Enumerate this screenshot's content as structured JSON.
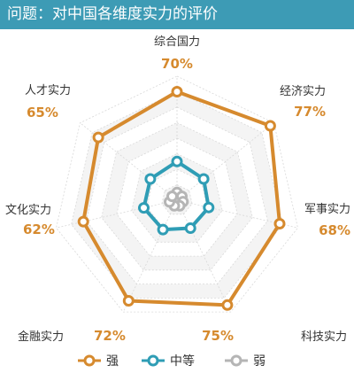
{
  "header": {
    "title": "问题：对中国各维度实力的评价"
  },
  "chart_data": {
    "type": "radar",
    "title": "问题：对中国各维度实力的评价",
    "categories": [
      "综合国力",
      "经济实力",
      "军事实力",
      "科技实力",
      "金融实力",
      "文化实力",
      "人才实力"
    ],
    "rlim": [
      0,
      80
    ],
    "grid": true,
    "legend_position": "bottom",
    "series": [
      {
        "name": "强",
        "color": "#d68a2e",
        "values": [
          70,
          77,
          68,
          75,
          72,
          62,
          65
        ]
      },
      {
        "name": "中等",
        "color": "#2f9db5",
        "values": [
          25,
          22,
          21,
          20,
          21,
          22,
          22
        ]
      },
      {
        "name": "弱",
        "color": "#b5b5b5",
        "values": [
          5,
          4,
          4,
          4,
          4,
          5,
          4
        ]
      }
    ],
    "data_labels": [
      "70%",
      "77%",
      "68%",
      "75%",
      "72%",
      "62%",
      "65%"
    ]
  }
}
